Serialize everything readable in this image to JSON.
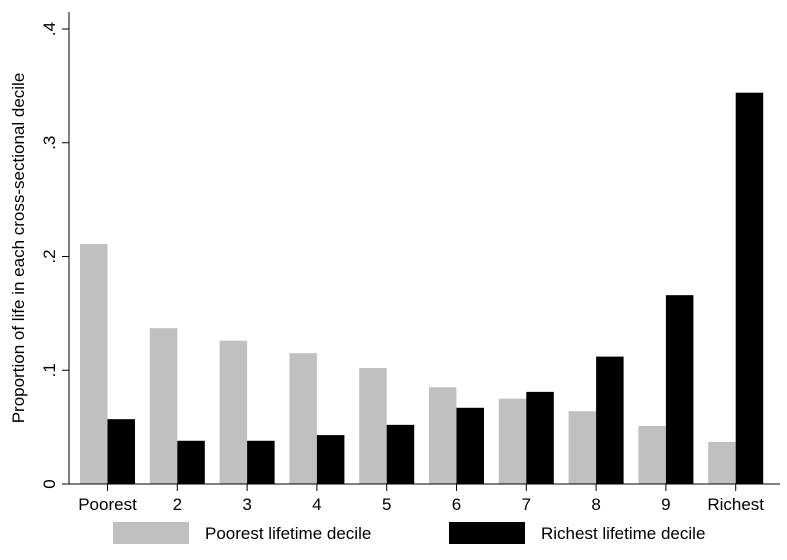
{
  "chart_data": {
    "type": "bar",
    "title": "",
    "xlabel": "",
    "ylabel": "Proportion of life in each cross-sectional decile",
    "categories": [
      "Poorest",
      "2",
      "3",
      "4",
      "5",
      "6",
      "7",
      "8",
      "9",
      "Richest"
    ],
    "series": [
      {
        "name": "Poorest lifetime decile",
        "color": "#c0c0c0",
        "values": [
          0.211,
          0.137,
          0.126,
          0.115,
          0.102,
          0.085,
          0.075,
          0.064,
          0.051,
          0.037
        ]
      },
      {
        "name": "Richest lifetime decile",
        "color": "#000000",
        "values": [
          0.057,
          0.038,
          0.038,
          0.043,
          0.052,
          0.067,
          0.081,
          0.112,
          0.166,
          0.344
        ]
      }
    ],
    "ylim": [
      0,
      0.4
    ],
    "yticks": [
      0,
      0.1,
      0.2,
      0.3,
      0.4
    ],
    "ytick_labels": [
      "0",
      ".1",
      ".2",
      ".3",
      ".4"
    ],
    "grid": false,
    "legend_position": "bottom"
  }
}
